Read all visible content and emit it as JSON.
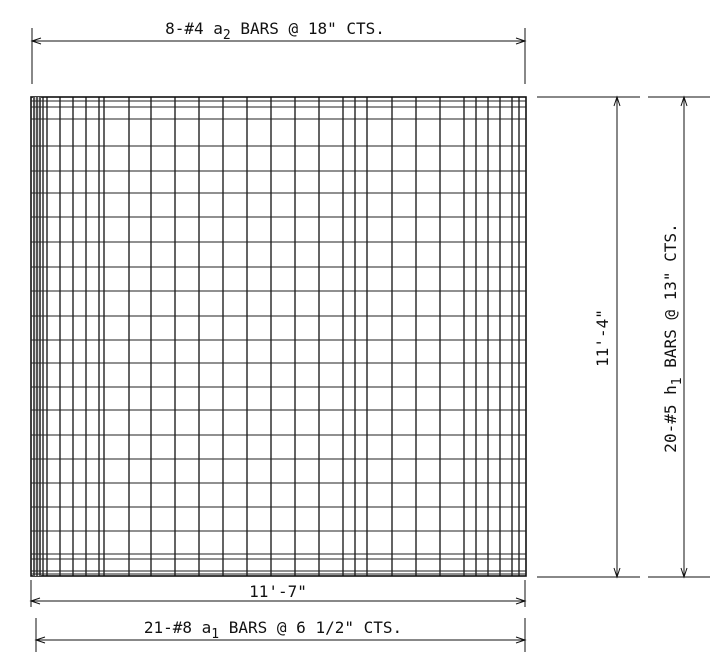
{
  "drawing": {
    "top_label": {
      "count_bar": "8-#4 ",
      "mark": "a",
      "sub": "2",
      "rest": " BARS @ 18\" CTS."
    },
    "bottom_label": {
      "count_bar": "21-#8 ",
      "mark": "a",
      "sub": "1",
      "rest": " BARS @ 6 1/2\" CTS."
    },
    "right_label": {
      "count_bar": "20-#5 ",
      "mark": "h",
      "sub": "1",
      "rest": " BARS @ 13\" CTS."
    },
    "width_dimension": "11'-7\"",
    "height_dimension": "11'-4\""
  }
}
